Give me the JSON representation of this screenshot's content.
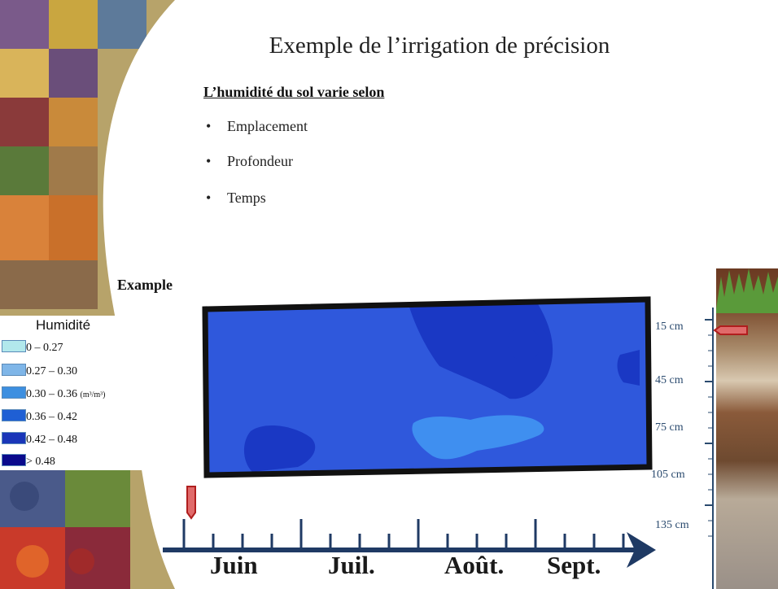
{
  "slide": {
    "title": "Exemple de l’irrigation de précision",
    "subtitle": "L’humidité du sol varie selon",
    "bullets": [
      "Emplacement",
      "Profondeur",
      "Temps"
    ],
    "bullet_symbol": "•",
    "example_label": "Example"
  },
  "legend": {
    "title": "Humidité",
    "unit": "(m³/m³)",
    "items": [
      {
        "label": "0 – 0.27",
        "color": "#b2e8ec"
      },
      {
        "label": "0.27 – 0.30",
        "color": "#7fb6e8"
      },
      {
        "label": "0.30 – 0.36",
        "color": "#3d8fe0"
      },
      {
        "label": "0.36 – 0.42",
        "color": "#1f5fd4"
      },
      {
        "label": "0.42 – 0.48",
        "color": "#1a36b8"
      },
      {
        "label": "> 0.48",
        "color": "#0a0a8c"
      }
    ]
  },
  "heatmap": {
    "base_color": "#2f58dc",
    "dark_zone_color": "#1a38c4",
    "light_zone_color": "#3f8ff0",
    "frame_color": "#111111"
  },
  "depth_scale": {
    "labels": [
      "15 cm",
      "45 cm",
      "75 cm",
      "105 cm",
      "135 cm"
    ],
    "color": "#2a4a6e"
  },
  "timeline": {
    "months": [
      "Juin",
      "Juil.",
      "Août.",
      "Sept."
    ],
    "axis_color": "#1f3a64"
  },
  "marker_color": "#e06a6a"
}
